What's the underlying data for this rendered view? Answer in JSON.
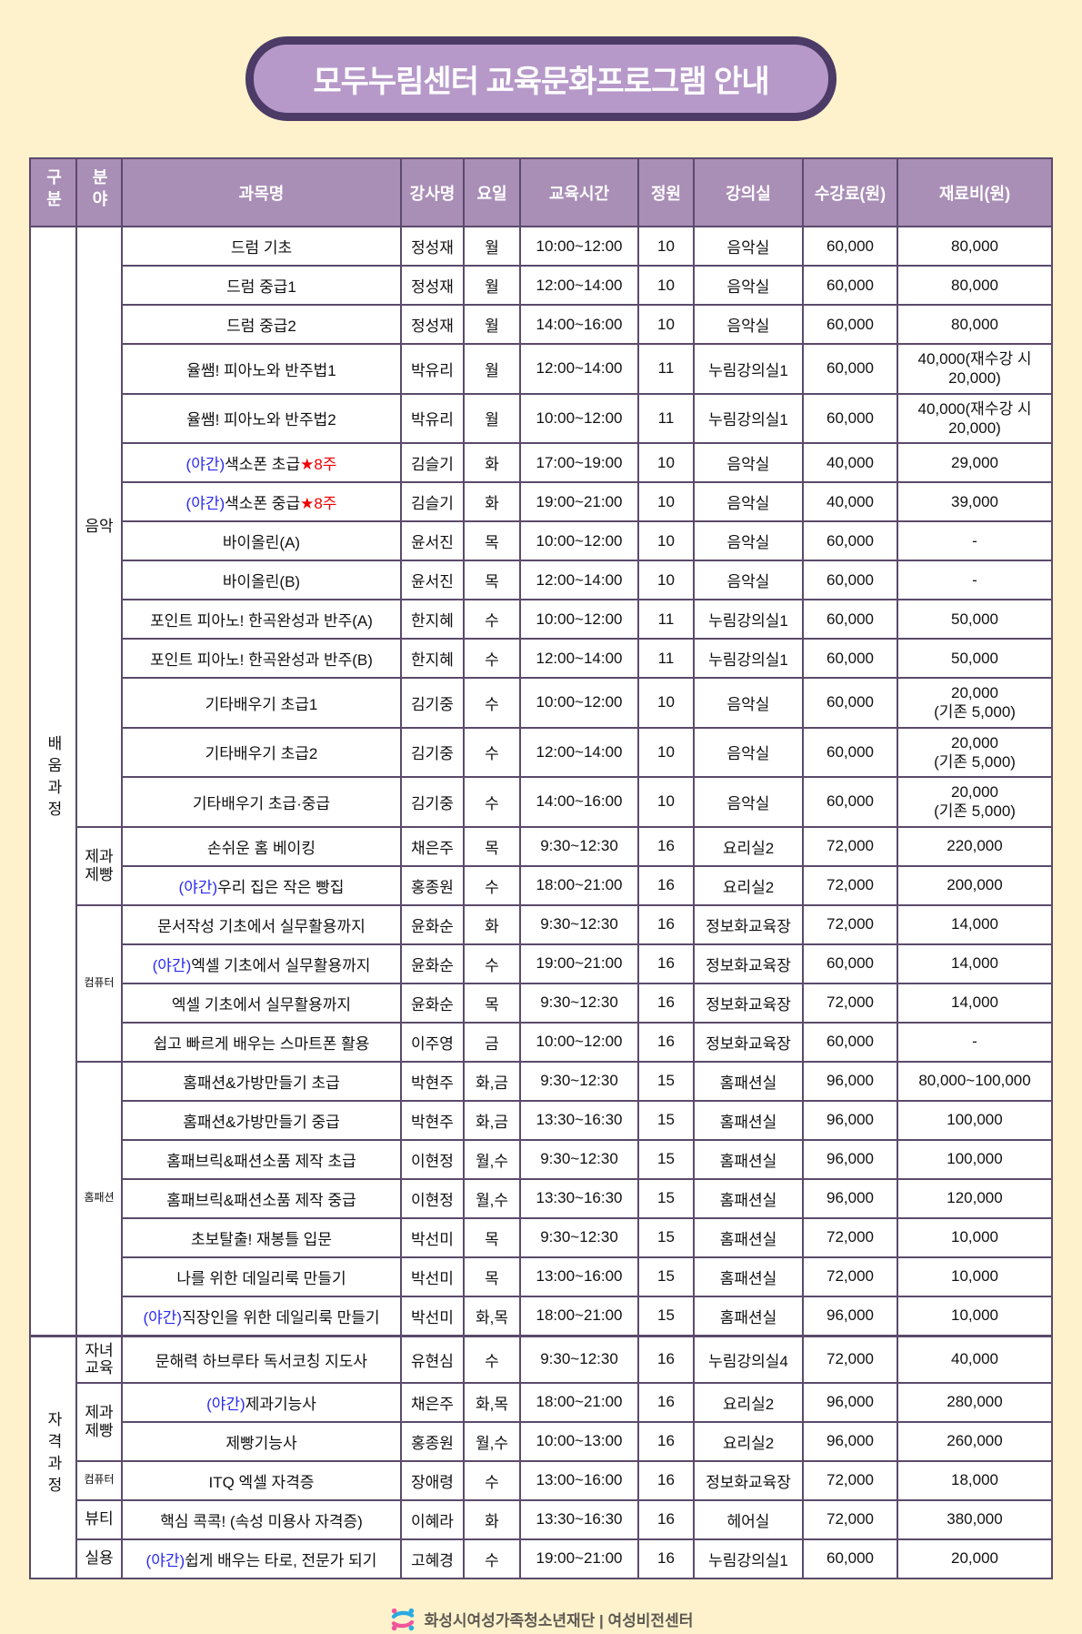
{
  "page": {
    "title": "모두누림센터 교육문화프로그램 안내",
    "footer": "화성시여성가족청소년재단 | 여성비전센터"
  },
  "colors": {
    "page_background": "#fdf2cc",
    "badge_fill": "#b699c9",
    "badge_border": "#4b3b66",
    "header_bg": "#a98eb6",
    "table_border": "#5b4a6b",
    "night_text": "#2a2af0",
    "star_text": "#f00000",
    "logo_pink": "#f0569a",
    "logo_blue": "#29abe2"
  },
  "table": {
    "headers": [
      "구분",
      "분야",
      "과목명",
      "강사명",
      "요일",
      "교육시간",
      "정원",
      "강의실",
      "수강료(원)",
      "재료비(원)"
    ],
    "sections": [
      {
        "category": "배움과정",
        "groups": [
          {
            "field": "음악",
            "rows": [
              {
                "night": "",
                "subject": "드럼 기초",
                "star": "",
                "instructor": "정성재",
                "day": "월",
                "time": "10:00~12:00",
                "capacity": "10",
                "room": "음악실",
                "tuition": "60,000",
                "material": "80,000"
              },
              {
                "night": "",
                "subject": "드럼 중급1",
                "star": "",
                "instructor": "정성재",
                "day": "월",
                "time": "12:00~14:00",
                "capacity": "10",
                "room": "음악실",
                "tuition": "60,000",
                "material": "80,000"
              },
              {
                "night": "",
                "subject": "드럼 중급2",
                "star": "",
                "instructor": "정성재",
                "day": "월",
                "time": "14:00~16:00",
                "capacity": "10",
                "room": "음악실",
                "tuition": "60,000",
                "material": "80,000"
              },
              {
                "night": "",
                "subject": "율쌤! 피아노와 반주법1",
                "star": "",
                "instructor": "박유리",
                "day": "월",
                "time": "12:00~14:00",
                "capacity": "11",
                "room": "누림강의실1",
                "tuition": "60,000",
                "material": "40,000(재수강 시\n20,000)"
              },
              {
                "night": "",
                "subject": "율쌤! 피아노와 반주법2",
                "star": "",
                "instructor": "박유리",
                "day": "월",
                "time": "10:00~12:00",
                "capacity": "11",
                "room": "누림강의실1",
                "tuition": "60,000",
                "material": "40,000(재수강 시\n20,000)"
              },
              {
                "night": "(야간)",
                "subject": "색소폰 초급",
                "star": "★8주",
                "instructor": "김슬기",
                "day": "화",
                "time": "17:00~19:00",
                "capacity": "10",
                "room": "음악실",
                "tuition": "40,000",
                "material": "29,000"
              },
              {
                "night": "(야간)",
                "subject": "색소폰 중급",
                "star": "★8주",
                "instructor": "김슬기",
                "day": "화",
                "time": "19:00~21:00",
                "capacity": "10",
                "room": "음악실",
                "tuition": "40,000",
                "material": "39,000"
              },
              {
                "night": "",
                "subject": "바이올린(A)",
                "star": "",
                "instructor": "윤서진",
                "day": "목",
                "time": "10:00~12:00",
                "capacity": "10",
                "room": "음악실",
                "tuition": "60,000",
                "material": "-"
              },
              {
                "night": "",
                "subject": "바이올린(B)",
                "star": "",
                "instructor": "윤서진",
                "day": "목",
                "time": "12:00~14:00",
                "capacity": "10",
                "room": "음악실",
                "tuition": "60,000",
                "material": "-"
              },
              {
                "night": "",
                "subject": "포인트 피아노! 한곡완성과 반주(A)",
                "star": "",
                "instructor": "한지혜",
                "day": "수",
                "time": "10:00~12:00",
                "capacity": "11",
                "room": "누림강의실1",
                "tuition": "60,000",
                "material": "50,000"
              },
              {
                "night": "",
                "subject": "포인트 피아노! 한곡완성과 반주(B)",
                "star": "",
                "instructor": "한지혜",
                "day": "수",
                "time": "12:00~14:00",
                "capacity": "11",
                "room": "누림강의실1",
                "tuition": "60,000",
                "material": "50,000"
              },
              {
                "night": "",
                "subject": "기타배우기 초급1",
                "star": "",
                "instructor": "김기중",
                "day": "수",
                "time": "10:00~12:00",
                "capacity": "10",
                "room": "음악실",
                "tuition": "60,000",
                "material": "20,000\n(기존 5,000)"
              },
              {
                "night": "",
                "subject": "기타배우기 초급2",
                "star": "",
                "instructor": "김기중",
                "day": "수",
                "time": "12:00~14:00",
                "capacity": "10",
                "room": "음악실",
                "tuition": "60,000",
                "material": "20,000\n(기존 5,000)"
              },
              {
                "night": "",
                "subject": "기타배우기 초급·중급",
                "star": "",
                "instructor": "김기중",
                "day": "수",
                "time": "14:00~16:00",
                "capacity": "10",
                "room": "음악실",
                "tuition": "60,000",
                "material": "20,000\n(기존 5,000)"
              }
            ]
          },
          {
            "field": "제과제빵",
            "rows": [
              {
                "night": "",
                "subject": "손쉬운 홈 베이킹",
                "star": "",
                "instructor": "채은주",
                "day": "목",
                "time": "9:30~12:30",
                "capacity": "16",
                "room": "요리실2",
                "tuition": "72,000",
                "material": "220,000"
              },
              {
                "night": "(야간)",
                "subject": "우리 집은 작은 빵집",
                "star": "",
                "instructor": "홍종원",
                "day": "수",
                "time": "18:00~21:00",
                "capacity": "16",
                "room": "요리실2",
                "tuition": "72,000",
                "material": "200,000"
              }
            ]
          },
          {
            "field": "컴퓨터",
            "rows": [
              {
                "night": "",
                "subject": "문서작성 기초에서 실무활용까지",
                "star": "",
                "instructor": "윤화순",
                "day": "화",
                "time": "9:30~12:30",
                "capacity": "16",
                "room": "정보화교육장",
                "tuition": "72,000",
                "material": "14,000"
              },
              {
                "night": "(야간)",
                "subject": "엑셀 기초에서 실무활용까지",
                "star": "",
                "instructor": "윤화순",
                "day": "수",
                "time": "19:00~21:00",
                "capacity": "16",
                "room": "정보화교육장",
                "tuition": "60,000",
                "material": "14,000"
              },
              {
                "night": "",
                "subject": "엑셀 기초에서 실무활용까지",
                "star": "",
                "instructor": "윤화순",
                "day": "목",
                "time": "9:30~12:30",
                "capacity": "16",
                "room": "정보화교육장",
                "tuition": "72,000",
                "material": "14,000"
              },
              {
                "night": "",
                "subject": "쉽고 빠르게 배우는 스마트폰 활용",
                "star": "",
                "instructor": "이주영",
                "day": "금",
                "time": "10:00~12:00",
                "capacity": "16",
                "room": "정보화교육장",
                "tuition": "60,000",
                "material": "-"
              }
            ]
          },
          {
            "field": "홈패션",
            "rows": [
              {
                "night": "",
                "subject": "홈패션&가방만들기 초급",
                "star": "",
                "instructor": "박현주",
                "day": "화,금",
                "time": "9:30~12:30",
                "capacity": "15",
                "room": "홈패션실",
                "tuition": "96,000",
                "material": "80,000~100,000"
              },
              {
                "night": "",
                "subject": "홈패션&가방만들기 중급",
                "star": "",
                "instructor": "박현주",
                "day": "화,금",
                "time": "13:30~16:30",
                "capacity": "15",
                "room": "홈패션실",
                "tuition": "96,000",
                "material": "100,000"
              },
              {
                "night": "",
                "subject": "홈패브릭&패션소품 제작 초급",
                "star": "",
                "instructor": "이현정",
                "day": "월,수",
                "time": "9:30~12:30",
                "capacity": "15",
                "room": "홈패션실",
                "tuition": "96,000",
                "material": "100,000"
              },
              {
                "night": "",
                "subject": "홈패브릭&패션소품 제작 중급",
                "star": "",
                "instructor": "이현정",
                "day": "월,수",
                "time": "13:30~16:30",
                "capacity": "15",
                "room": "홈패션실",
                "tuition": "96,000",
                "material": "120,000"
              },
              {
                "night": "",
                "subject": "초보탈출! 재봉틀 입문",
                "star": "",
                "instructor": "박선미",
                "day": "목",
                "time": "9:30~12:30",
                "capacity": "15",
                "room": "홈패션실",
                "tuition": "72,000",
                "material": "10,000"
              },
              {
                "night": "",
                "subject": "나를 위한 데일리룩 만들기",
                "star": "",
                "instructor": "박선미",
                "day": "목",
                "time": "13:00~16:00",
                "capacity": "15",
                "room": "홈패션실",
                "tuition": "72,000",
                "material": "10,000"
              },
              {
                "night": "(야간)",
                "subject": "직장인을 위한 데일리룩 만들기",
                "star": "",
                "instructor": "박선미",
                "day": "화,목",
                "time": "18:00~21:00",
                "capacity": "15",
                "room": "홈패션실",
                "tuition": "96,000",
                "material": "10,000"
              }
            ]
          }
        ]
      },
      {
        "category": "자격과정",
        "groups": [
          {
            "field": "자녀교육",
            "rows": [
              {
                "night": "",
                "subject": "문해력 하브루타 독서코칭 지도사",
                "star": "",
                "instructor": "유현심",
                "day": "수",
                "time": "9:30~12:30",
                "capacity": "16",
                "room": "누림강의실4",
                "tuition": "72,000",
                "material": "40,000"
              }
            ]
          },
          {
            "field": "제과제빵",
            "rows": [
              {
                "night": "(야간)",
                "subject": "제과기능사",
                "star": "",
                "instructor": "채은주",
                "day": "화,목",
                "time": "18:00~21:00",
                "capacity": "16",
                "room": "요리실2",
                "tuition": "96,000",
                "material": "280,000"
              },
              {
                "night": "",
                "subject": "제빵기능사",
                "star": "",
                "instructor": "홍종원",
                "day": "월,수",
                "time": "10:00~13:00",
                "capacity": "16",
                "room": "요리실2",
                "tuition": "96,000",
                "material": "260,000"
              }
            ]
          },
          {
            "field": "컴퓨터",
            "rows": [
              {
                "night": "",
                "subject": "ITQ 엑셀 자격증",
                "star": "",
                "instructor": "장애령",
                "day": "수",
                "time": "13:00~16:00",
                "capacity": "16",
                "room": "정보화교육장",
                "tuition": "72,000",
                "material": "18,000"
              }
            ]
          },
          {
            "field": "뷰티",
            "rows": [
              {
                "night": "",
                "subject": "핵심 콕콕! (속성 미용사 자격증)",
                "star": "",
                "instructor": "이혜라",
                "day": "화",
                "time": "13:30~16:30",
                "capacity": "16",
                "room": "헤어실",
                "tuition": "72,000",
                "material": "380,000"
              }
            ]
          },
          {
            "field": "실용",
            "rows": [
              {
                "night": "(야간)",
                "subject": "쉽게 배우는 타로, 전문가 되기",
                "star": "",
                "instructor": "고혜경",
                "day": "수",
                "time": "19:00~21:00",
                "capacity": "16",
                "room": "누림강의실1",
                "tuition": "60,000",
                "material": "20,000"
              }
            ]
          }
        ]
      }
    ]
  }
}
